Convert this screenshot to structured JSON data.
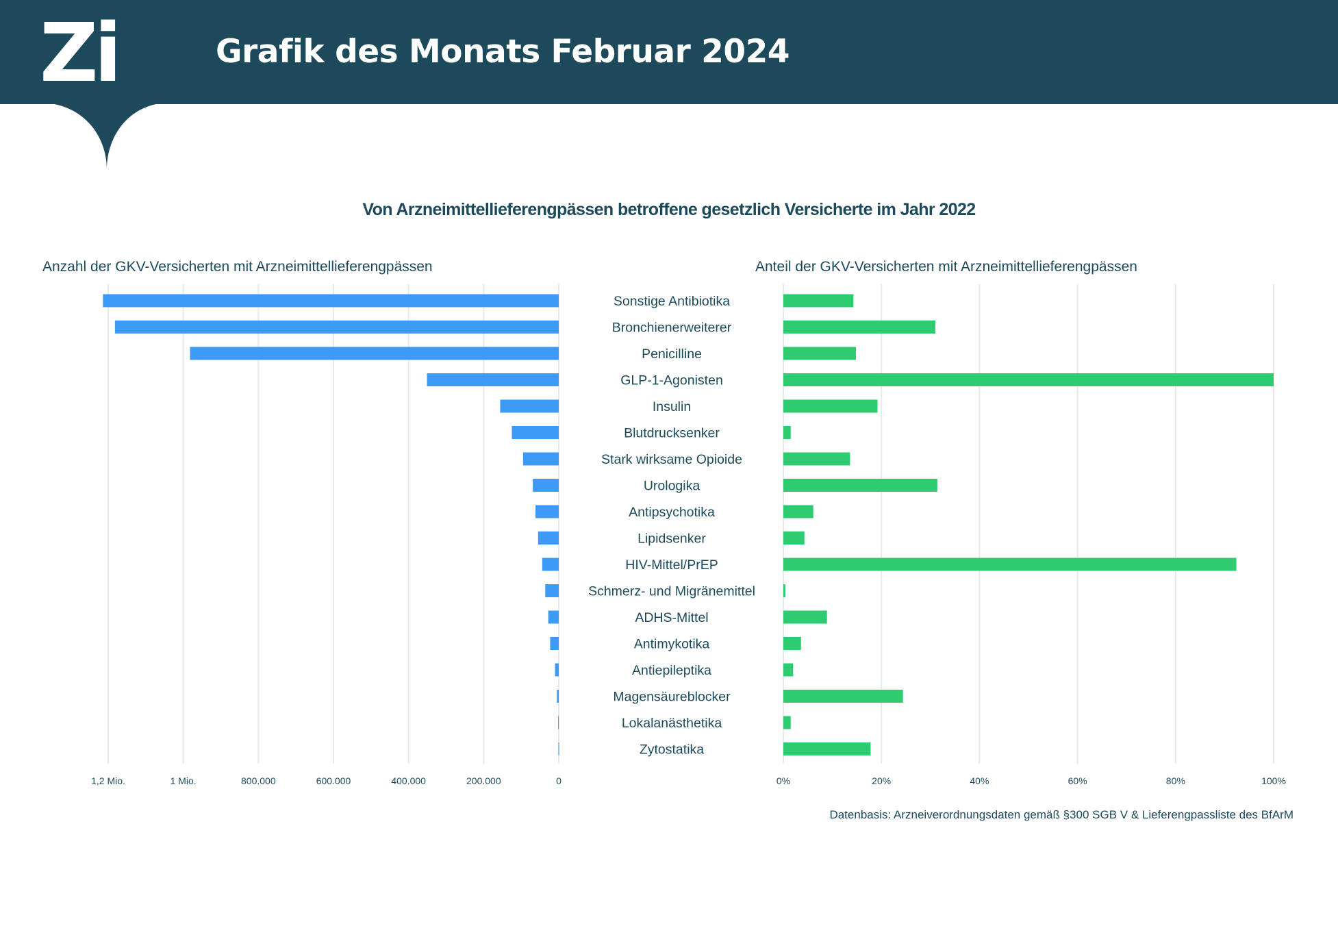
{
  "header": {
    "logo_text": "Zi",
    "title": "Grafik des Monats Februar 2024",
    "background_color": "#1c4a5a"
  },
  "chart_data": [
    {
      "type": "bar",
      "orientation": "horizontal",
      "direction": "right-to-left",
      "title": "Von Arzneimittellieferengpässen betroffene gesetzlich Versicherte im Jahr 2022",
      "subtitle": "Anzahl der GKV-Versicherten mit Arzneimittellieferengpässen",
      "color": "#3d9bf7",
      "categories": [
        "Sonstige Antibiotika",
        "Bronchienerweiterer",
        "Penicilline",
        "GLP-1-Agonisten",
        "Insulin",
        "Blutdrucksenker",
        "Stark wirksame Opioide",
        "Urologika",
        "Antipsychotika",
        "Lipidsenker",
        "HIV-Mittel/PrEP",
        "Schmerz- und Migränemittel",
        "ADHS-Mittel",
        "Antimykotika",
        "Antiepileptika",
        "Magensäureblocker",
        "Lokalanästhetika",
        "Zytostatika"
      ],
      "values": [
        1214000,
        1182000,
        982000,
        351000,
        156000,
        125000,
        95000,
        69000,
        62000,
        55000,
        44000,
        36000,
        28000,
        23000,
        10000,
        5000,
        1700,
        900
      ],
      "xlim": [
        0,
        1200000
      ],
      "ticks": [
        0,
        200000,
        400000,
        600000,
        800000,
        1000000,
        1200000
      ],
      "tick_labels": [
        "0",
        "200.000",
        "400.000",
        "600.000",
        "800.000",
        "1 Mio.",
        "1,2 Mio."
      ],
      "grid": true
    },
    {
      "type": "bar",
      "orientation": "horizontal",
      "subtitle": "Anteil der GKV-Versicherten mit Arzneimittellieferengpässen",
      "color": "#2ecc71",
      "categories": [
        "Sonstige Antibiotika",
        "Bronchienerweiterer",
        "Penicilline",
        "GLP-1-Agonisten",
        "Insulin",
        "Blutdrucksenker",
        "Stark wirksame Opioide",
        "Urologika",
        "Antipsychotika",
        "Lipidsenker",
        "HIV-Mittel/PrEP",
        "Schmerz- und Migränemittel",
        "ADHS-Mittel",
        "Antimykotika",
        "Antiepileptika",
        "Magensäureblocker",
        "Lokalanästhetika",
        "Zytostatika"
      ],
      "values": [
        14.3,
        31.0,
        14.8,
        100,
        19.2,
        1.5,
        13.6,
        31.4,
        6.1,
        4.3,
        92.4,
        0.4,
        8.9,
        3.6,
        2.0,
        24.4,
        1.5,
        17.8
      ],
      "unit": "%",
      "xlim": [
        0,
        100
      ],
      "ticks": [
        0,
        20,
        40,
        60,
        80,
        100
      ],
      "tick_labels": [
        "0%",
        "20%",
        "40%",
        "60%",
        "80%",
        "100%"
      ],
      "grid": true
    }
  ],
  "source": "Datenbasis: Arzneiverordnungsdaten gemäß §300 SGB V & Lieferengpassliste des BfArM",
  "colors": {
    "text": "#1c4a5a",
    "grid": "#e6eaea"
  }
}
